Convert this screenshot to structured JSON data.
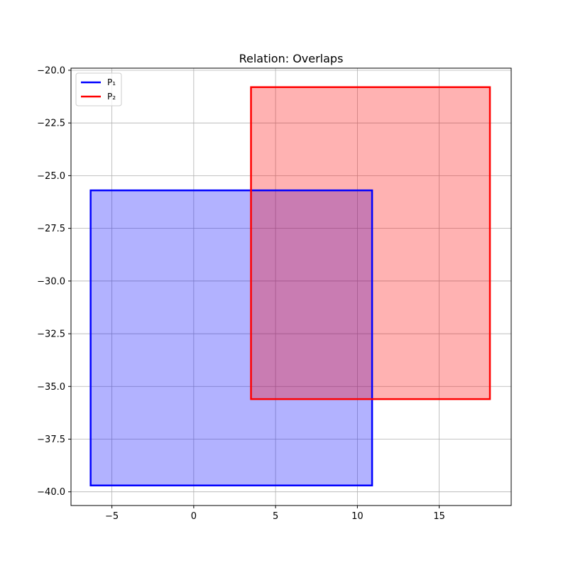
{
  "chart_data": {
    "type": "area",
    "title": "Relation: Overlaps",
    "xlabel": "",
    "ylabel": "",
    "xlim": [
      -7.5,
      19.4
    ],
    "ylim": [
      -40.65,
      -19.9
    ],
    "grid": true,
    "legend": "top-left",
    "xticks": [
      {
        "value": -5,
        "label": "−5"
      },
      {
        "value": 0,
        "label": "0"
      },
      {
        "value": 5,
        "label": "5"
      },
      {
        "value": 10,
        "label": "10"
      },
      {
        "value": 15,
        "label": "15"
      }
    ],
    "yticks": [
      {
        "value": -20.0,
        "label": "−20.0"
      },
      {
        "value": -22.5,
        "label": "−22.5"
      },
      {
        "value": -25.0,
        "label": "−25.0"
      },
      {
        "value": -27.5,
        "label": "−27.5"
      },
      {
        "value": -30.0,
        "label": "−30.0"
      },
      {
        "value": -32.5,
        "label": "−32.5"
      },
      {
        "value": -35.0,
        "label": "−35.0"
      },
      {
        "value": -37.5,
        "label": "−37.5"
      },
      {
        "value": -40.0,
        "label": "−40.0"
      }
    ],
    "series": [
      {
        "name": "P₁",
        "color": "#0000ff",
        "fill": "#0000ff",
        "fill_opacity": 0.3,
        "points": [
          [
            -6.3,
            -39.7
          ],
          [
            10.9,
            -39.7
          ],
          [
            10.9,
            -25.7
          ],
          [
            -6.3,
            -25.7
          ]
        ]
      },
      {
        "name": "P₂",
        "color": "#ff0000",
        "fill": "#ff0000",
        "fill_opacity": 0.3,
        "points": [
          [
            3.5,
            -35.6
          ],
          [
            18.1,
            -35.6
          ],
          [
            18.1,
            -20.8
          ],
          [
            3.5,
            -20.8
          ]
        ]
      }
    ]
  }
}
